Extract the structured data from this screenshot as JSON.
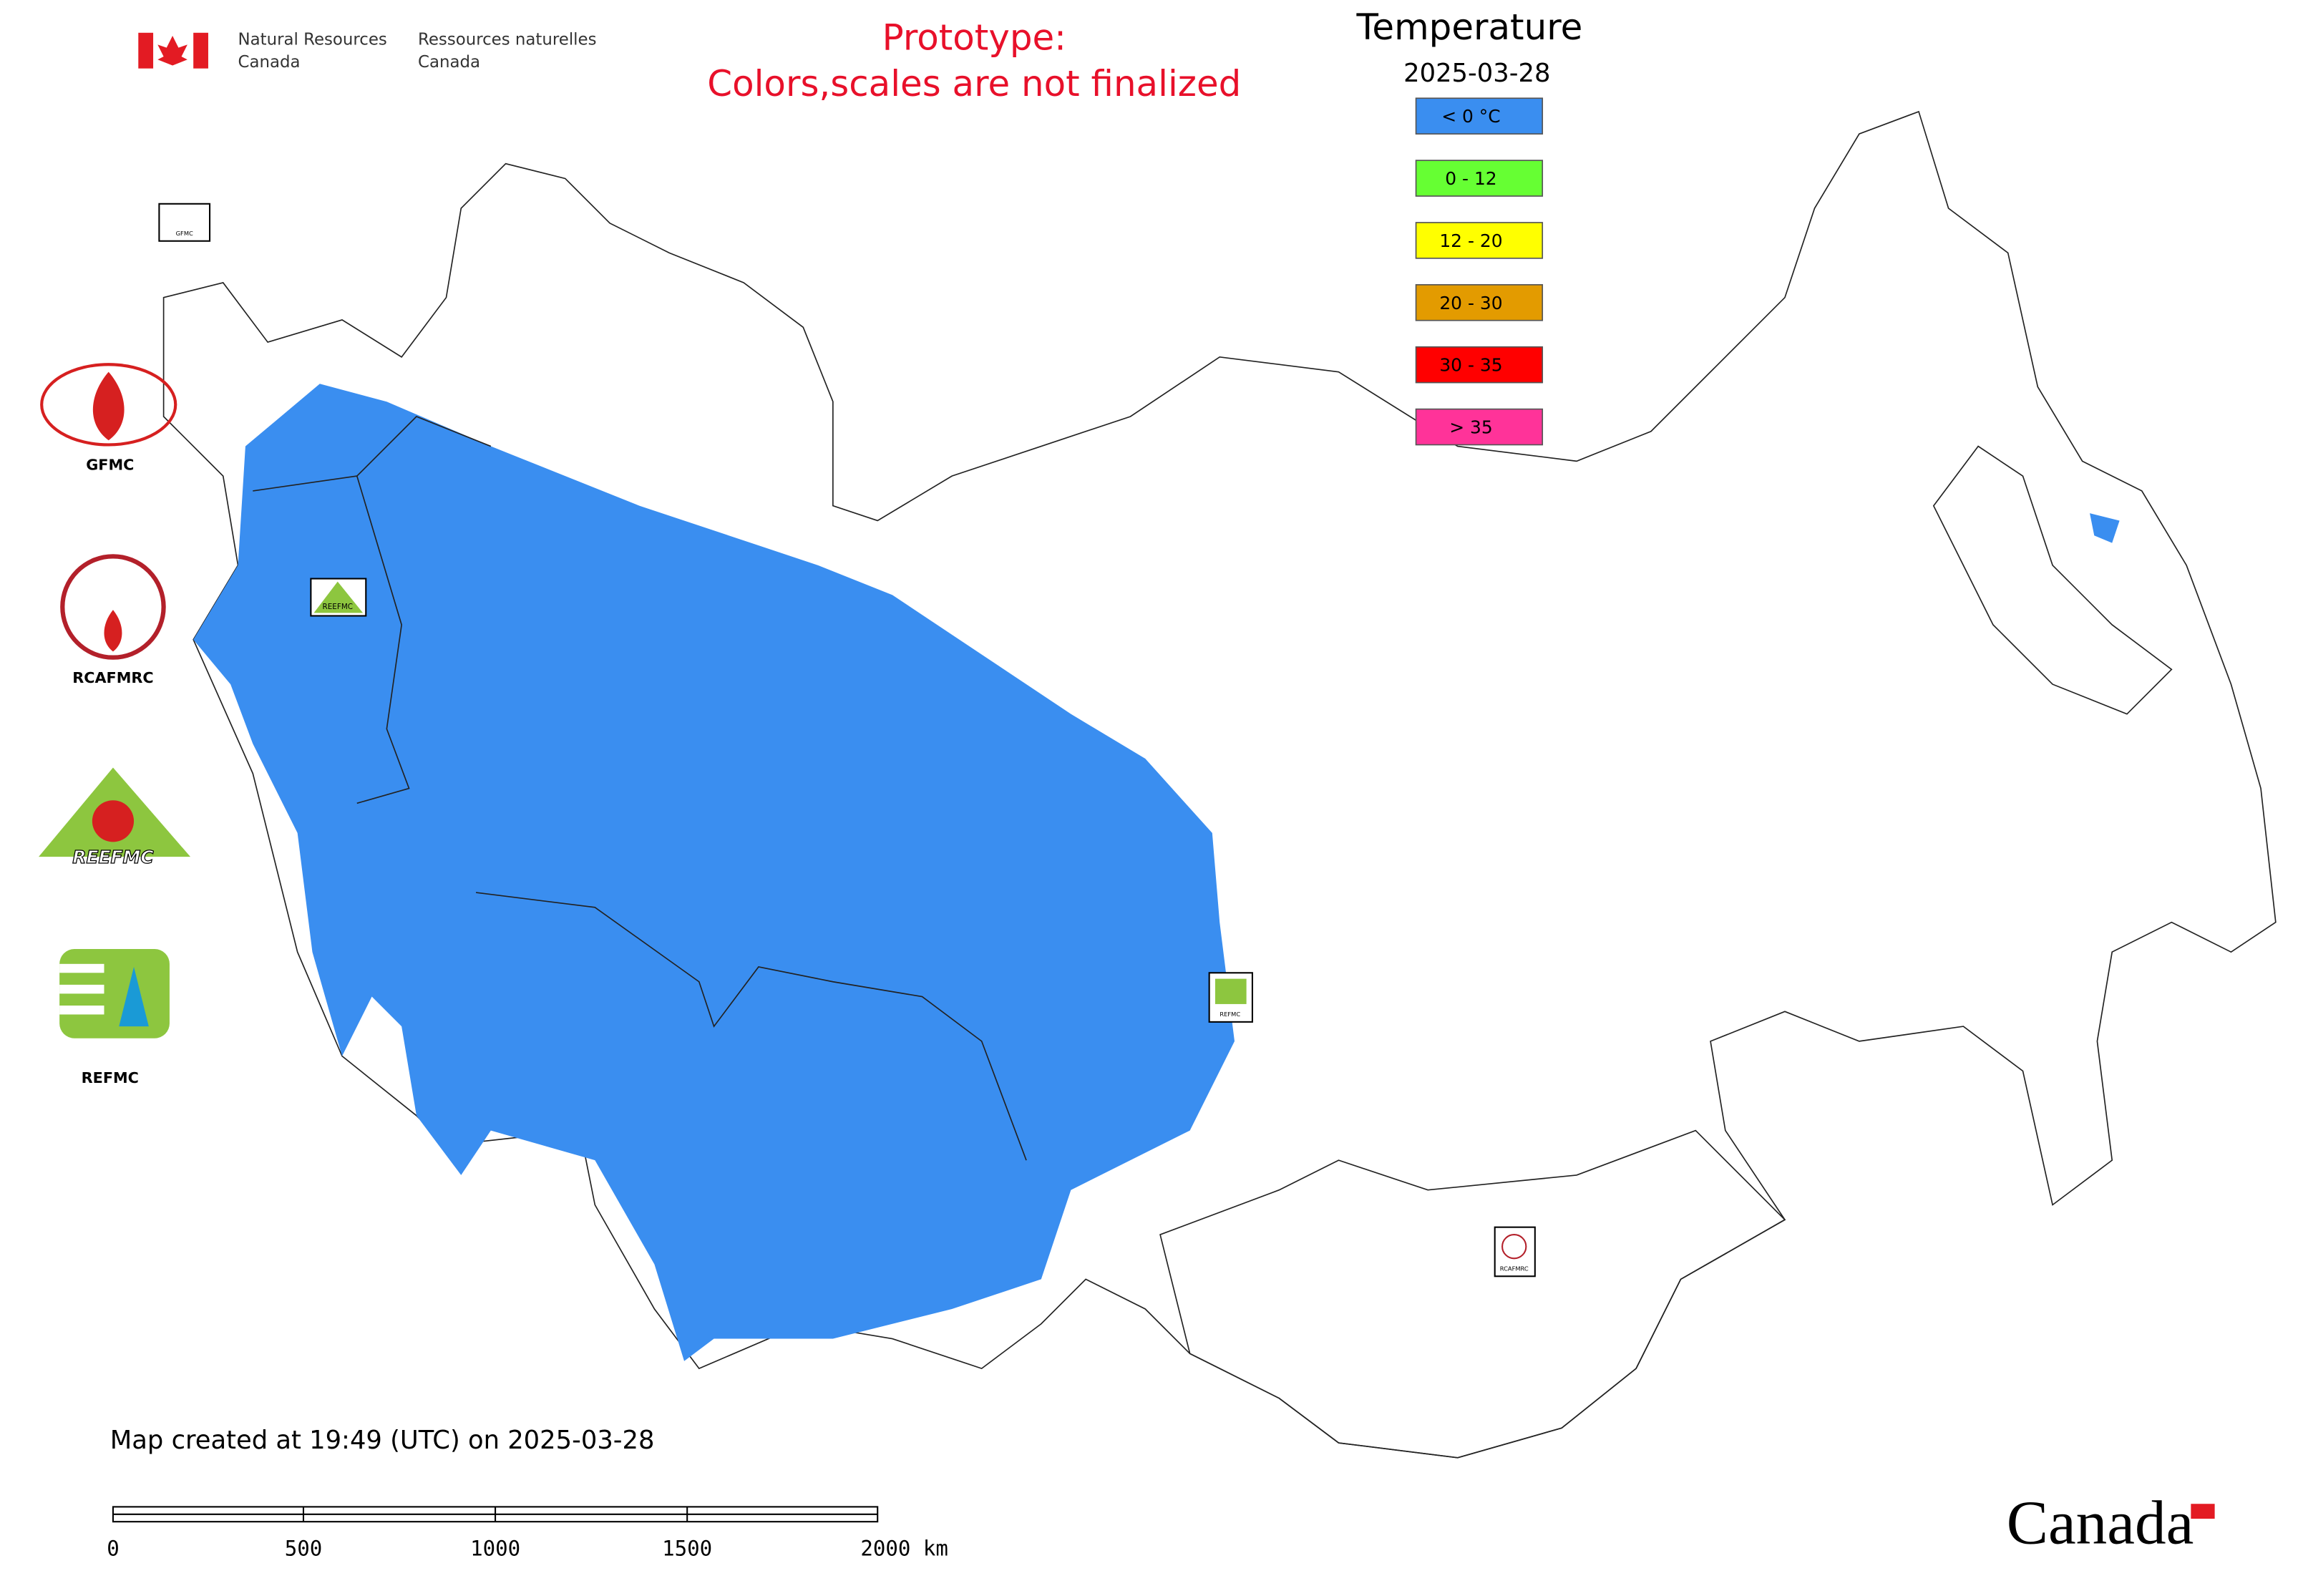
{
  "header": {
    "agency_en": [
      "Natural Resources",
      "Canada"
    ],
    "agency_fr": [
      "Ressources naturelles",
      "Canada"
    ],
    "notice": [
      "Prototype:",
      "Colors,scales are not finalized"
    ]
  },
  "legend": {
    "title": "Temperature",
    "date": "2025-03-28",
    "items": [
      {
        "label": "< 0 °C",
        "color": "#3a8ef0"
      },
      {
        "label": "0 - 12",
        "color": "#66ff33"
      },
      {
        "label": "12 - 20",
        "color": "#ffff00"
      },
      {
        "label": "20 - 30",
        "color": "#e39b00"
      },
      {
        "label": "30 - 35",
        "color": "#ff0000"
      },
      {
        "label": "> 35",
        "color": "#ff3399"
      }
    ]
  },
  "logos": [
    {
      "label": "GFMC"
    },
    {
      "label": "RCAFMRC"
    },
    {
      "label": "REEFMC"
    },
    {
      "label": "REFMC"
    }
  ],
  "map_markers": [
    {
      "label": "GFMC"
    },
    {
      "label": "REEFMC"
    },
    {
      "label": "REFMC"
    },
    {
      "label": "RCAFMRC"
    }
  ],
  "footer": {
    "created": "Map created at 19:49 (UTC) on 2025-03-28",
    "scale_labels": [
      "0",
      "500",
      "1000",
      "1500",
      "2000 km"
    ],
    "wordmark": "Canada"
  }
}
